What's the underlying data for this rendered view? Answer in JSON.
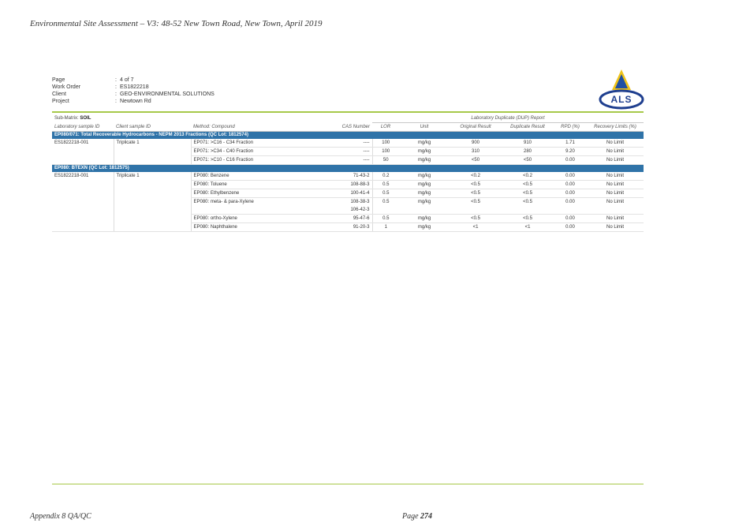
{
  "doc_header": "Environmental Site Assessment – V3: 48-52 New Town Road, New Town, April 2019",
  "meta": [
    {
      "label": "Page",
      "value": "4 of 7"
    },
    {
      "label": "Work Order",
      "value": "ES1822218"
    },
    {
      "label": "Client",
      "value": "GEO-ENVIRONMENTAL SOLUTIONS"
    },
    {
      "label": "Project",
      "value": "Newtown Rd"
    }
  ],
  "logo_text": "ALS",
  "table": {
    "sub_matrix_label": "Sub-Matrix:",
    "sub_matrix_value": "SOIL",
    "report_caption": "Laboratory Duplicate (DUP) Report",
    "headers": [
      "Laboratory sample ID",
      "Client sample ID",
      "Method: Compound",
      "CAS Number",
      "LOR",
      "Unit",
      "Original Result",
      "Duplicate Result",
      "RPD (%)",
      "Recovery Limits (%)"
    ],
    "groups": [
      {
        "title": "EP080/071: Total Recoverable Hydrocarbons - NEPM 2013 Fractions (QC Lot: 1812574)",
        "lab_id": "ES1822218-001",
        "client_id": "Triplicate 1",
        "rows": [
          {
            "compound": "EP071: >C16 - C34 Fraction",
            "cas": "----",
            "lor": "100",
            "unit": "mg/kg",
            "orig": "900",
            "dup": "910",
            "rpd": "1.71",
            "limits": "No Limit"
          },
          {
            "compound": "EP071: >C34 - C40 Fraction",
            "cas": "----",
            "lor": "100",
            "unit": "mg/kg",
            "orig": "310",
            "dup": "280",
            "rpd": "9.20",
            "limits": "No Limit"
          },
          {
            "compound": "EP071: >C10 - C16 Fraction",
            "cas": "----",
            "lor": "50",
            "unit": "mg/kg",
            "orig": "<50",
            "dup": "<50",
            "rpd": "0.00",
            "limits": "No Limit"
          }
        ]
      },
      {
        "title": "EP080: BTEXN (QC Lot: 1812575)",
        "lab_id": "ES1822218-001",
        "client_id": "Triplicate 1",
        "rows": [
          {
            "compound": "EP080: Benzene",
            "cas": "71-43-2",
            "lor": "0.2",
            "unit": "mg/kg",
            "orig": "<0.2",
            "dup": "<0.2",
            "rpd": "0.00",
            "limits": "No Limit"
          },
          {
            "compound": "EP080: Toluene",
            "cas": "108-88-3",
            "lor": "0.5",
            "unit": "mg/kg",
            "orig": "<0.5",
            "dup": "<0.5",
            "rpd": "0.00",
            "limits": "No Limit"
          },
          {
            "compound": "EP080: Ethylbenzene",
            "cas": "100-41-4",
            "lor": "0.5",
            "unit": "mg/kg",
            "orig": "<0.5",
            "dup": "<0.5",
            "rpd": "0.00",
            "limits": "No Limit"
          },
          {
            "compound": "EP080: meta- & para-Xylene",
            "cas": "108-38-3",
            "cas2": "106-42-3",
            "lor": "0.5",
            "unit": "mg/kg",
            "orig": "<0.5",
            "dup": "<0.5",
            "rpd": "0.00",
            "limits": "No Limit"
          },
          {
            "compound": "EP080: ortho-Xylene",
            "cas": "95-47-6",
            "lor": "0.5",
            "unit": "mg/kg",
            "orig": "<0.5",
            "dup": "<0.5",
            "rpd": "0.00",
            "limits": "No Limit"
          },
          {
            "compound": "EP080: Naphthalene",
            "cas": "91-20-3",
            "lor": "1",
            "unit": "mg/kg",
            "orig": "<1",
            "dup": "<1",
            "rpd": "0.00",
            "limits": "No Limit"
          }
        ]
      }
    ]
  },
  "footer": {
    "left": "Appendix 8 QA/QC",
    "page_label": "Page",
    "page_number": "274"
  }
}
